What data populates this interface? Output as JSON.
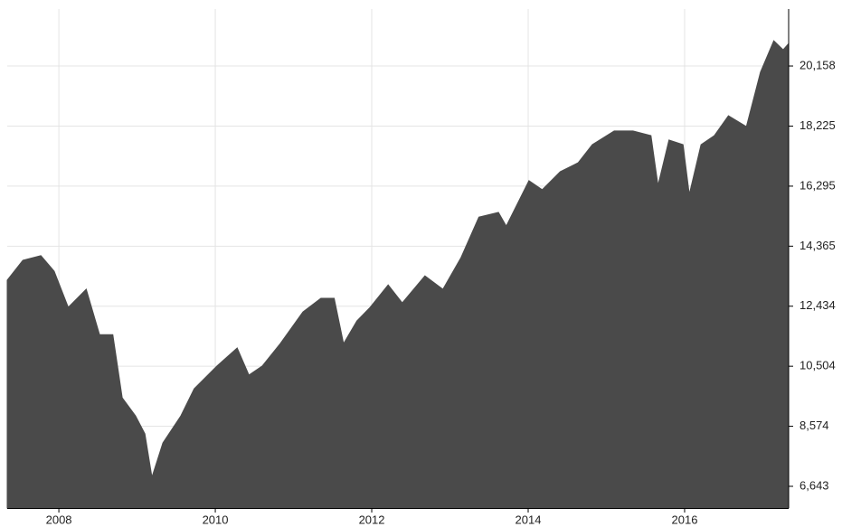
{
  "chart_data": {
    "type": "area",
    "x": [
      2007.34,
      2007.54,
      2007.77,
      2007.94,
      2008.12,
      2008.35,
      2008.52,
      2008.69,
      2008.81,
      2008.98,
      2009.1,
      2009.19,
      2009.33,
      2009.56,
      2009.73,
      2010.02,
      2010.28,
      2010.43,
      2010.6,
      2010.83,
      2011.12,
      2011.35,
      2011.52,
      2011.64,
      2011.81,
      2011.98,
      2012.21,
      2012.39,
      2012.68,
      2012.91,
      2013.14,
      2013.37,
      2013.62,
      2013.72,
      2014.01,
      2014.18,
      2014.41,
      2014.64,
      2014.82,
      2015.1,
      2015.34,
      2015.57,
      2015.66,
      2015.8,
      2015.98,
      2016.06,
      2016.21,
      2016.38,
      2016.56,
      2016.79,
      2016.97,
      2017.14,
      2017.26,
      2017.33
    ],
    "values": [
      13270,
      13910,
      14060,
      13560,
      12400,
      12980,
      11520,
      11520,
      9490,
      8910,
      8330,
      6935,
      8040,
      8910,
      9780,
      10510,
      11090,
      10220,
      10510,
      11230,
      12250,
      12690,
      12690,
      11230,
      11960,
      12400,
      13120,
      12540,
      13410,
      12980,
      13990,
      15300,
      15450,
      15010,
      16470,
      16180,
      16760,
      17050,
      17630,
      18070,
      18070,
      17920,
      16320,
      17780,
      17630,
      16030,
      17630,
      17920,
      18560,
      18210,
      19960,
      20970,
      20680,
      20880
    ],
    "color": "#4a4a4a",
    "xlim": [
      2007.34,
      2017.33
    ],
    "xticks": [
      2008,
      2010,
      2012,
      2014,
      2016
    ],
    "ylim": [
      5945,
      21990
    ],
    "yticks": [
      {
        "value": 6643,
        "label": "6,643"
      },
      {
        "value": 8574,
        "label": "8,574"
      },
      {
        "value": 10504,
        "label": "10,504"
      },
      {
        "value": 12434,
        "label": "12,434"
      },
      {
        "value": 14365,
        "label": "14,365"
      },
      {
        "value": 16295,
        "label": "16,295"
      },
      {
        "value": 18225,
        "label": "18,225"
      },
      {
        "value": 20158,
        "label": "20,158"
      }
    ],
    "grid": true
  }
}
